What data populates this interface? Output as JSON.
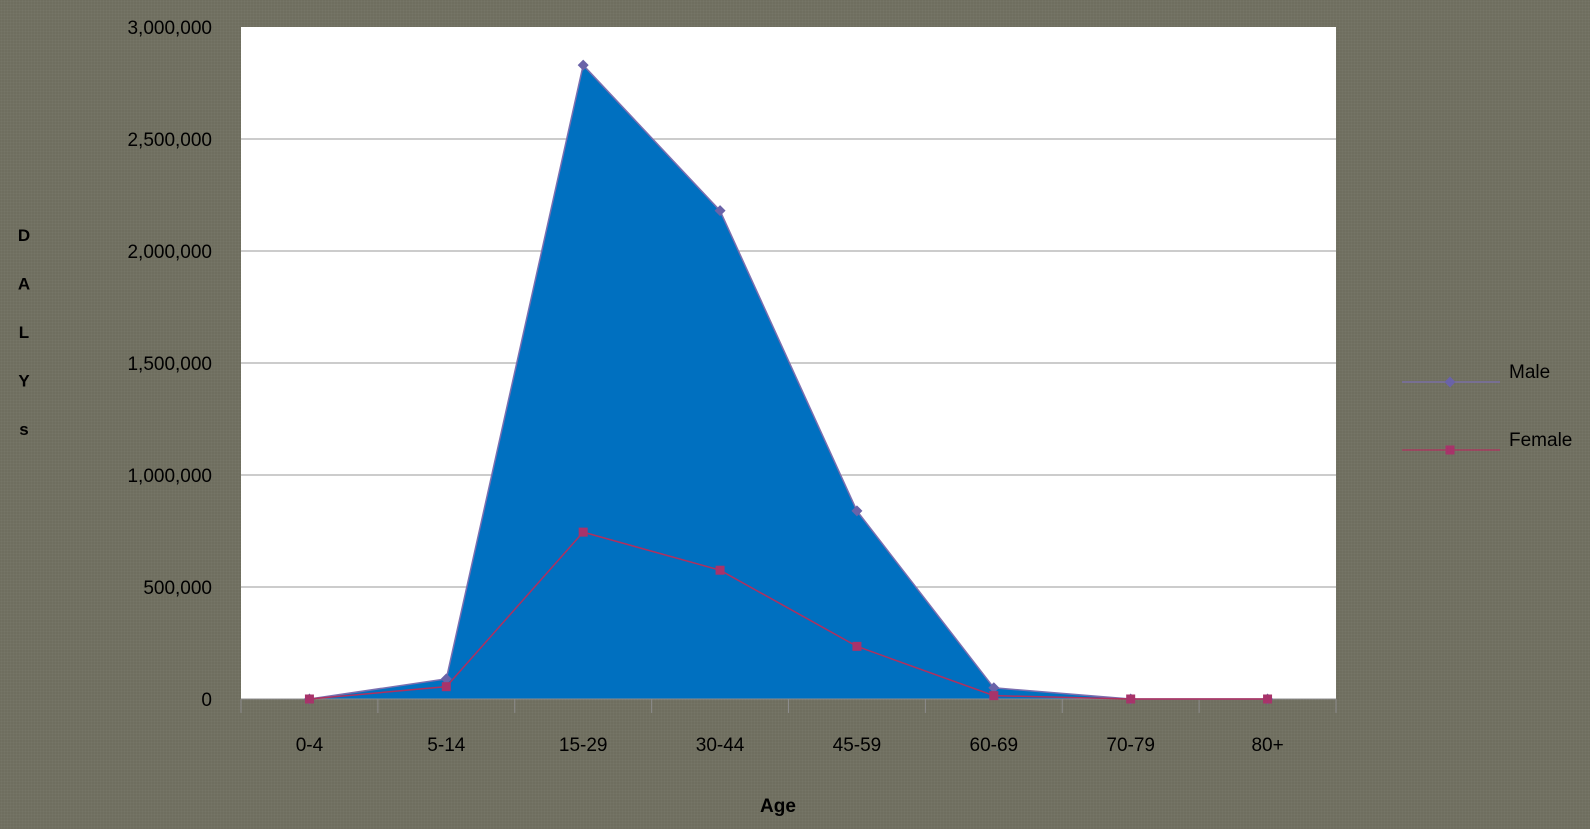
{
  "chart_data": {
    "type": "area",
    "title": "",
    "xlabel": "Age",
    "ylabel": "DALYs",
    "ylabel_letters": [
      "D",
      "A",
      "L",
      "Y",
      "s"
    ],
    "categories": [
      "0-4",
      "5-14",
      "15-29",
      "30-44",
      "45-59",
      "60-69",
      "70-79",
      "80+"
    ],
    "ylim": [
      0,
      3000000
    ],
    "yticks": [
      0,
      500000,
      1000000,
      1500000,
      2000000,
      2500000,
      3000000
    ],
    "ytick_labels": [
      "0",
      "500,000",
      "1,000,000",
      "1,500,000",
      "2,000,000",
      "2,500,000",
      "3,000,000"
    ],
    "grid": true,
    "legend_position": "right",
    "series": [
      {
        "name": "Male",
        "values": [
          0,
          90000,
          2830000,
          2180000,
          840000,
          50000,
          0,
          0
        ],
        "line_color": "#7b6fb0",
        "marker": "diamond",
        "marker_color": "#6a63a8",
        "fill_color": "#0070c0"
      },
      {
        "name": "Female",
        "values": [
          0,
          55000,
          745000,
          575000,
          235000,
          15000,
          0,
          0
        ],
        "line_color": "#b0305e",
        "marker": "square",
        "marker_color": "#a8336a"
      }
    ]
  },
  "colors": {
    "background": "#6f6e5f",
    "plot_area": "#ffffff",
    "gridline": "#9a9a9a",
    "axis_text": "#000000"
  }
}
